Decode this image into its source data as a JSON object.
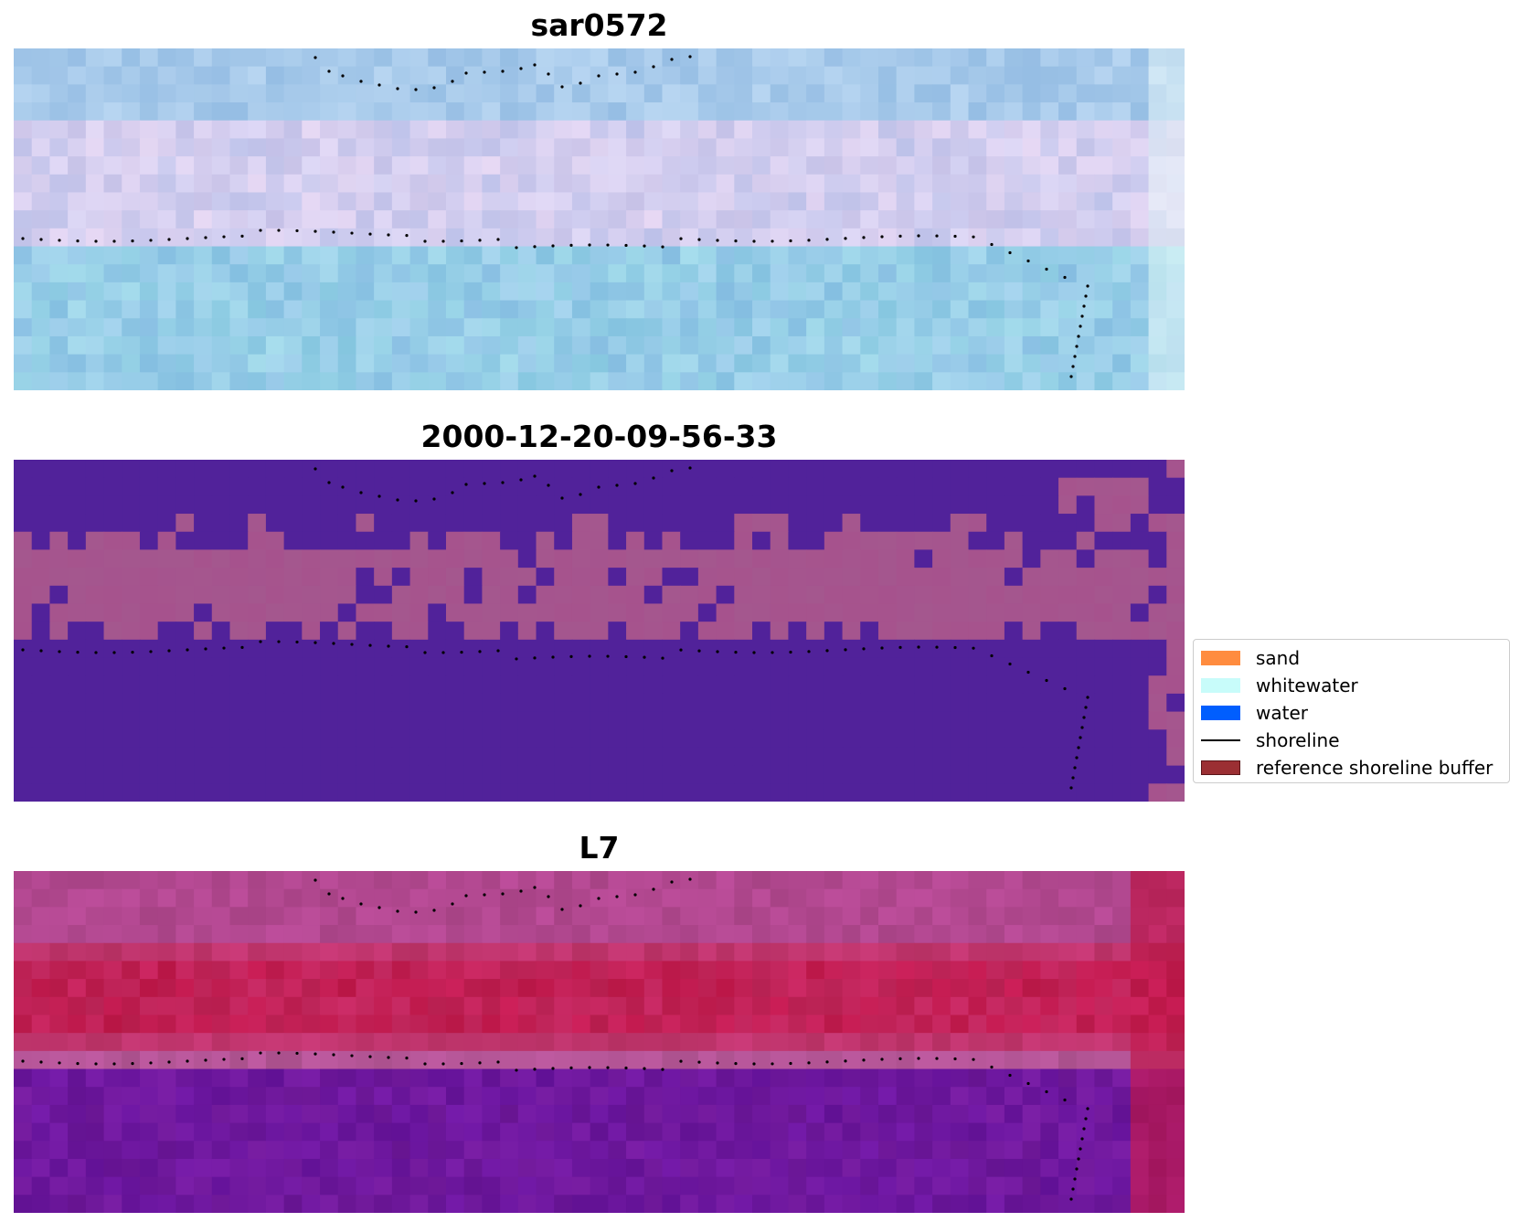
{
  "panels": [
    {
      "title": "sar0572",
      "palette": "rgb",
      "seed": 11
    },
    {
      "title": "2000-12-20-09-56-33",
      "palette": "classified",
      "seed": 23
    },
    {
      "title": "L7",
      "palette": "index",
      "seed": 37
    }
  ],
  "legend": {
    "items": [
      {
        "label": "sand",
        "kind": "patch",
        "color": "#ff8c3f"
      },
      {
        "label": "whitewater",
        "kind": "patch",
        "color": "#c8fcfa"
      },
      {
        "label": "water",
        "kind": "patch",
        "color": "#005efe"
      },
      {
        "label": "shoreline",
        "kind": "line",
        "color": "#000000"
      },
      {
        "label": "reference shoreline buffer",
        "kind": "patch",
        "color": "#9b2f33"
      }
    ]
  },
  "colors": {
    "rgb_base": "#a8c8ec",
    "classified_background": "#51229a",
    "classified_sand": "#a4578e",
    "index_high": "#c21a4e",
    "index_low": "#6b16a0",
    "shoreline_dots": "#000000"
  }
}
